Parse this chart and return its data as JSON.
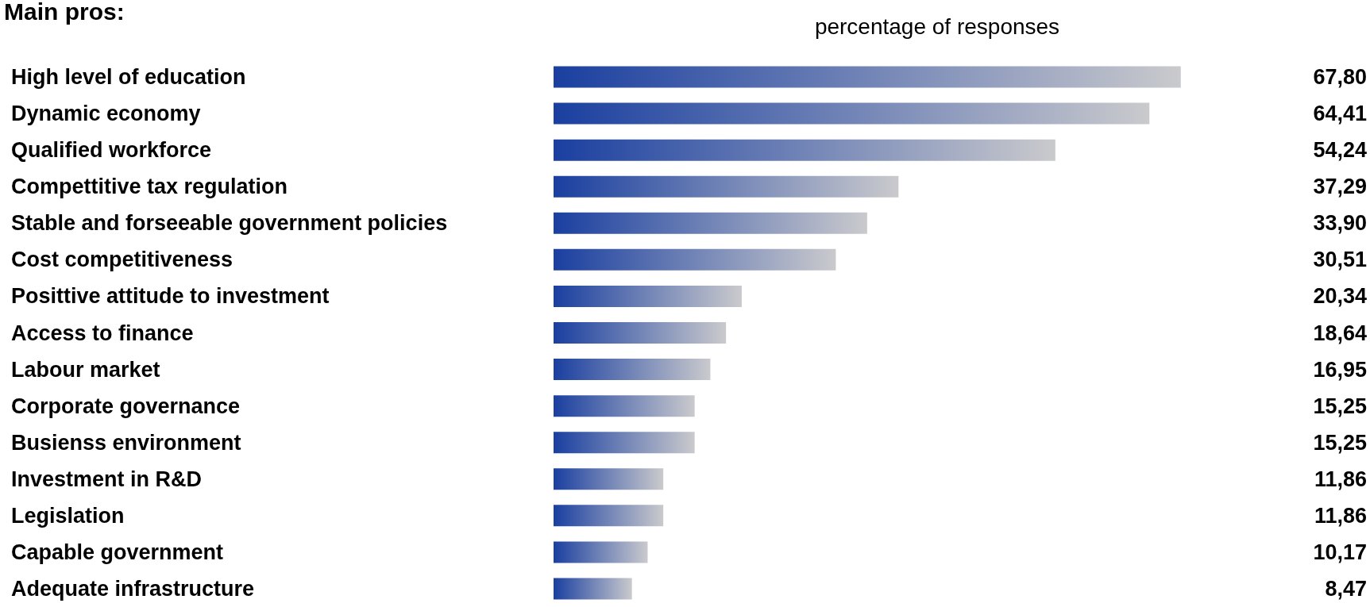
{
  "chart_data": {
    "type": "bar",
    "orientation": "horizontal",
    "title": "Main pros:",
    "subtitle": "percentage of responses",
    "categories": [
      "High level of education",
      "Dynamic economy",
      "Qualified workforce",
      "Compettitive tax regulation",
      "Stable and forseeable government policies",
      "Cost competitiveness",
      "Posittive attitude to investment",
      "Access to finance",
      "Labour market",
      "Corporate governance",
      "Busienss environment",
      "Investment in R&D",
      "Legislation",
      "Capable government",
      "Adequate infrastructure"
    ],
    "series": [
      {
        "color": "#1a3fa0",
        "values": [
          67.8,
          64.41,
          54.24,
          37.29,
          33.9,
          30.51,
          20.34,
          18.64,
          16.95,
          15.25,
          15.25,
          11.86,
          11.86,
          10.17,
          8.47
        ],
        "value_labels": [
          "67,80",
          "64,41",
          "54,24",
          "37,29",
          "33,90",
          "30,51",
          "20,34",
          "18,64",
          "16,95",
          "15,25",
          "15,25",
          "11,86",
          "11,86",
          "10,17",
          "8,47"
        ]
      }
    ],
    "data_labels": false
  }
}
